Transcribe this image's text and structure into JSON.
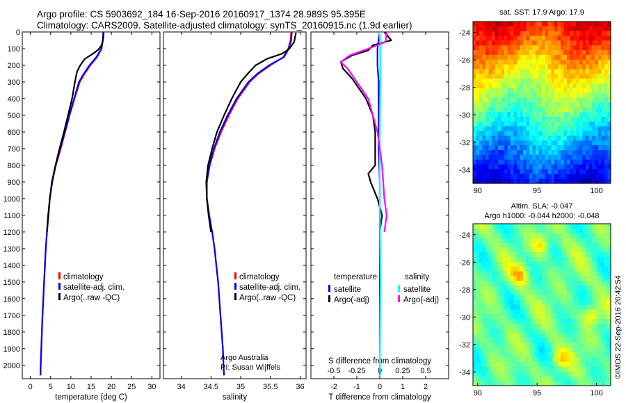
{
  "header": {
    "line1": "Argo profile: CS 5903692_184 16-Sep-2016 20160917_1374 28.989S 95.395E",
    "line2": "Climatology: CARS2009. Satellite-adjusted climatology: synTS_20160915.nc (1.9d earlier)"
  },
  "stamp": "©IMOS 22-Sep-2016 20:42:54",
  "colors": {
    "climatology": "#ff0000",
    "satellite": "#0000ff",
    "argo": "#000000",
    "sat_salinity": "#00ffff",
    "argo_salinity": "#ff00ff"
  },
  "chart_data": [
    {
      "type": "line",
      "xlabel": "temperature (deg C)",
      "ylabel": "",
      "xlim": [
        -2,
        32
      ],
      "ylim": [
        2080,
        0
      ],
      "xticks": [
        0,
        5,
        10,
        15,
        20,
        25,
        30
      ],
      "yticks": [
        0,
        100,
        200,
        300,
        400,
        500,
        600,
        700,
        800,
        900,
        1000,
        1100,
        1200,
        1300,
        1400,
        1500,
        1600,
        1700,
        1800,
        1900,
        2000
      ],
      "legend": [
        "climatology",
        "satellite-adj. clim.",
        "Argo(..raw -QC)"
      ],
      "series": [
        {
          "name": "climatology",
          "color": "#ff0000",
          "points": [
            [
              18.0,
              0
            ],
            [
              17.9,
              50
            ],
            [
              17.6,
              100
            ],
            [
              16.5,
              150
            ],
            [
              14.8,
              200
            ],
            [
              13.4,
              250
            ],
            [
              12.2,
              300
            ],
            [
              10.9,
              400
            ],
            [
              9.7,
              500
            ],
            [
              8.6,
              600
            ],
            [
              7.5,
              700
            ],
            [
              6.3,
              800
            ],
            [
              5.4,
              900
            ],
            [
              4.8,
              1000
            ],
            [
              4.5,
              1100
            ],
            [
              4.1,
              1200
            ],
            [
              3.8,
              1300
            ],
            [
              3.6,
              1400
            ],
            [
              3.4,
              1500
            ],
            [
              3.2,
              1600
            ],
            [
              3.0,
              1700
            ],
            [
              2.85,
              1800
            ],
            [
              2.7,
              1900
            ],
            [
              2.55,
              2000
            ],
            [
              2.5,
              2060
            ]
          ]
        },
        {
          "name": "satellite-adj. clim.",
          "color": "#0000ff",
          "points": [
            [
              18.0,
              0
            ],
            [
              17.9,
              50
            ],
            [
              17.5,
              100
            ],
            [
              16.3,
              150
            ],
            [
              14.6,
              200
            ],
            [
              13.2,
              250
            ],
            [
              12.0,
              300
            ],
            [
              10.8,
              400
            ],
            [
              9.6,
              500
            ],
            [
              8.5,
              600
            ],
            [
              7.4,
              700
            ],
            [
              6.2,
              800
            ],
            [
              5.3,
              900
            ],
            [
              4.8,
              1000
            ],
            [
              4.4,
              1100
            ],
            [
              4.1,
              1200
            ],
            [
              3.8,
              1300
            ],
            [
              3.6,
              1400
            ],
            [
              3.4,
              1500
            ],
            [
              3.2,
              1600
            ],
            [
              3.0,
              1700
            ],
            [
              2.85,
              1800
            ],
            [
              2.7,
              1900
            ],
            [
              2.55,
              2000
            ],
            [
              2.5,
              2060
            ]
          ]
        },
        {
          "name": "Argo(..raw -QC)",
          "color": "#000000",
          "points": [
            [
              18.1,
              5
            ],
            [
              18.0,
              40
            ],
            [
              17.6,
              80
            ],
            [
              16.8,
              105
            ],
            [
              15.5,
              130
            ],
            [
              13.5,
              160
            ],
            [
              12.3,
              200
            ],
            [
              11.5,
              240
            ],
            [
              11.0,
              300
            ],
            [
              10.3,
              400
            ],
            [
              9.3,
              500
            ],
            [
              8.3,
              600
            ],
            [
              7.2,
              700
            ],
            [
              6.2,
              800
            ],
            [
              5.4,
              900
            ],
            [
              4.8,
              1000
            ],
            [
              4.4,
              1100
            ],
            [
              4.1,
              1200
            ]
          ]
        }
      ]
    },
    {
      "type": "line",
      "xlabel": "salinity",
      "xlim": [
        33.7,
        36.1
      ],
      "ylim": [
        2080,
        0
      ],
      "xticks": [
        34,
        34.5,
        35,
        35.5,
        36
      ],
      "legend": [
        "climatology",
        "satellite-adj. clim.",
        "Argo(..raw -QC)"
      ],
      "annotation": [
        "Argo Australia",
        "PI: Susan Wijffels"
      ],
      "series": [
        {
          "name": "climatology",
          "color": "#ff0000",
          "points": [
            [
              35.85,
              0
            ],
            [
              35.84,
              50
            ],
            [
              35.8,
              100
            ],
            [
              35.72,
              150
            ],
            [
              35.5,
              200
            ],
            [
              35.3,
              250
            ],
            [
              35.15,
              300
            ],
            [
              34.95,
              400
            ],
            [
              34.8,
              500
            ],
            [
              34.67,
              600
            ],
            [
              34.56,
              700
            ],
            [
              34.48,
              800
            ],
            [
              34.43,
              900
            ],
            [
              34.43,
              1000
            ],
            [
              34.47,
              1100
            ],
            [
              34.52,
              1200
            ],
            [
              34.56,
              1300
            ],
            [
              34.59,
              1400
            ],
            [
              34.62,
              1500
            ],
            [
              34.64,
              1600
            ],
            [
              34.66,
              1700
            ],
            [
              34.68,
              1800
            ],
            [
              34.7,
              1900
            ],
            [
              34.71,
              2000
            ],
            [
              34.72,
              2060
            ]
          ]
        },
        {
          "name": "satellite-adj. clim.",
          "color": "#0000ff",
          "points": [
            [
              35.86,
              0
            ],
            [
              35.85,
              50
            ],
            [
              35.81,
              100
            ],
            [
              35.73,
              150
            ],
            [
              35.48,
              200
            ],
            [
              35.28,
              250
            ],
            [
              35.13,
              300
            ],
            [
              34.93,
              400
            ],
            [
              34.78,
              500
            ],
            [
              34.65,
              600
            ],
            [
              34.55,
              700
            ],
            [
              34.47,
              800
            ],
            [
              34.43,
              900
            ],
            [
              34.43,
              1000
            ],
            [
              34.47,
              1100
            ],
            [
              34.52,
              1200
            ],
            [
              34.56,
              1300
            ],
            [
              34.59,
              1400
            ],
            [
              34.62,
              1500
            ],
            [
              34.64,
              1600
            ],
            [
              34.66,
              1700
            ],
            [
              34.68,
              1800
            ],
            [
              34.7,
              1900
            ],
            [
              34.71,
              2000
            ],
            [
              34.72,
              2060
            ]
          ]
        },
        {
          "name": "Argo(..raw -QC)",
          "color": "#000000",
          "points": [
            [
              35.93,
              5
            ],
            [
              35.9,
              60
            ],
            [
              35.82,
              100
            ],
            [
              35.7,
              130
            ],
            [
              35.45,
              160
            ],
            [
              35.25,
              200
            ],
            [
              35.12,
              250
            ],
            [
              35.0,
              300
            ],
            [
              34.85,
              400
            ],
            [
              34.72,
              500
            ],
            [
              34.6,
              600
            ],
            [
              34.52,
              700
            ],
            [
              34.45,
              800
            ],
            [
              34.42,
              900
            ],
            [
              34.43,
              1000
            ],
            [
              34.46,
              1100
            ],
            [
              34.5,
              1200
            ]
          ]
        }
      ]
    },
    {
      "type": "line",
      "xlabel": "T difference from climatology",
      "toplabel": "S difference from climatology",
      "xlim": [
        -3,
        3
      ],
      "ylim": [
        2080,
        0
      ],
      "xticks": [
        -2,
        -1,
        0,
        1,
        2
      ],
      "xticklabels": [
        "-2",
        "-1",
        "0",
        "1",
        "2"
      ],
      "sticks": [
        -2,
        -1,
        0,
        1,
        2
      ],
      "sticklabels": [
        "-0.5",
        "-0.25",
        "0",
        "0.25",
        "0.5"
      ],
      "legend": {
        "temperature": [
          "satellite",
          "Argo(-adj)"
        ],
        "salinity": [
          "satellite",
          "Argo(-adj)"
        ]
      },
      "series": [
        {
          "name": "satellite",
          "color": "#0000ff",
          "points": [
            [
              0.0,
              0
            ],
            [
              -0.05,
              50
            ],
            [
              -0.1,
              100
            ],
            [
              -0.1,
              200
            ],
            [
              -0.05,
              300
            ],
            [
              -0.05,
              500
            ],
            [
              -0.05,
              700
            ],
            [
              0.0,
              900
            ],
            [
              0.0,
              1100
            ],
            [
              0.0,
              1500
            ],
            [
              0.0,
              2000
            ],
            [
              0.0,
              2060
            ]
          ]
        },
        {
          "name": "Argo(-adj)",
          "color": "#000000",
          "points": [
            [
              0.2,
              0
            ],
            [
              0.5,
              50
            ],
            [
              -0.3,
              80
            ],
            [
              -0.5,
              110
            ],
            [
              -1.2,
              140
            ],
            [
              -1.7,
              180
            ],
            [
              -1.6,
              220
            ],
            [
              -1.2,
              280
            ],
            [
              -0.6,
              400
            ],
            [
              -0.3,
              500
            ],
            [
              -0.2,
              600
            ],
            [
              -0.2,
              800
            ],
            [
              -0.5,
              850
            ],
            [
              -0.4,
              900
            ],
            [
              -0.1,
              1000
            ],
            [
              0.1,
              1100
            ],
            [
              0.0,
              1200
            ]
          ]
        },
        {
          "name": "satellite",
          "color": "#00ffff",
          "points": [
            [
              0.0,
              0
            ],
            [
              0.02,
              100
            ],
            [
              0.02,
              300
            ],
            [
              0.0,
              600
            ],
            [
              0.0,
              1000
            ],
            [
              0.03,
              1500
            ],
            [
              0.0,
              2000
            ],
            [
              0.02,
              2060
            ]
          ]
        },
        {
          "name": "Argo(-adj)",
          "color": "#ff00ff",
          "points": [
            [
              0.3,
              0
            ],
            [
              0.25,
              60
            ],
            [
              -0.5,
              100
            ],
            [
              -1.3,
              140
            ],
            [
              -1.7,
              180
            ],
            [
              -1.4,
              220
            ],
            [
              -1.0,
              300
            ],
            [
              -0.5,
              400
            ],
            [
              -0.1,
              600
            ],
            [
              0.1,
              800
            ],
            [
              0.2,
              1000
            ],
            [
              0.3,
              1100
            ],
            [
              0.2,
              1200
            ]
          ]
        }
      ]
    },
    {
      "type": "heatmap",
      "title": "sat. SST: 17.9 Argo: 17.9",
      "xlim": [
        89.6,
        101.2
      ],
      "ylim": [
        -35.0,
        -23.2
      ],
      "xticks": [
        90,
        95,
        100
      ],
      "yticks": [
        -24,
        -26,
        -28,
        -30,
        -32,
        -34
      ],
      "colormap": "jet"
    },
    {
      "type": "heatmap",
      "title": [
        "Altim. SLA: -0.047",
        "Argo h1000: -0.044 h2000: -0.048"
      ],
      "xlim": [
        89.6,
        101.2
      ],
      "ylim": [
        -35.0,
        -23.2
      ],
      "xticks": [
        90,
        95,
        100
      ],
      "yticks": [
        -24,
        -26,
        -28,
        -30,
        -32,
        -34
      ],
      "colormap": "jet"
    }
  ]
}
